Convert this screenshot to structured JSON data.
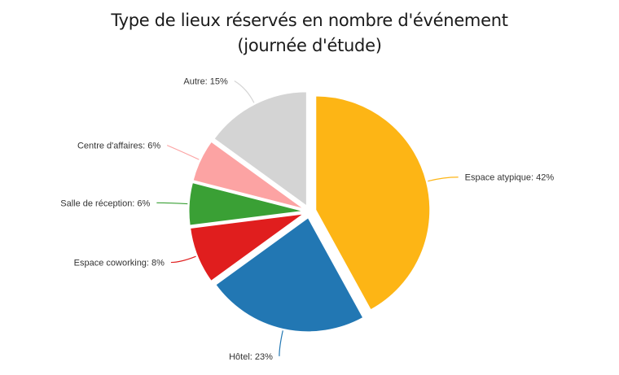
{
  "chart_data": {
    "type": "pie",
    "title_line1": "Type de lieux réservés en nombre d'événement",
    "title_line2": "(journée d'étude)",
    "slices": [
      {
        "name": "Espace atypique",
        "value": 42,
        "label": "Espace atypique: 42%",
        "color": "#FDB515"
      },
      {
        "name": "Hôtel",
        "value": 23,
        "label": "Hôtel: 23%",
        "color": "#2277B3"
      },
      {
        "name": "Espace coworking",
        "value": 8,
        "label": "Espace coworking: 8%",
        "color": "#E01E1E"
      },
      {
        "name": "Salle de réception",
        "value": 6,
        "label": "Salle de réception: 6%",
        "color": "#3AA035"
      },
      {
        "name": "Centre d'affaires",
        "value": 6,
        "label": "Centre d'affaires: 6%",
        "color": "#FCA3A3"
      },
      {
        "name": "Autre",
        "value": 15,
        "label": "Autre: 15%",
        "color": "#D4D4D4"
      }
    ]
  }
}
